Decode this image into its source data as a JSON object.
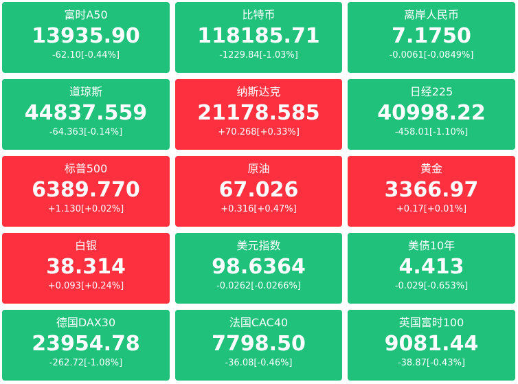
{
  "colors": {
    "down": "#1fc17b",
    "up": "#fd303f",
    "text": "#ffffff"
  },
  "quotes": [
    {
      "name": "富时A50",
      "price": "13935.90",
      "change": "-62.10[-0.44%]",
      "direction": "down"
    },
    {
      "name": "比特币",
      "price": "118185.71",
      "change": "-1229.84[-1.03%]",
      "direction": "down"
    },
    {
      "name": "离岸人民币",
      "price": "7.1750",
      "change": "-0.0061[-0.0849%]",
      "direction": "down"
    },
    {
      "name": "道琼斯",
      "price": "44837.559",
      "change": "-64.363[-0.14%]",
      "direction": "down"
    },
    {
      "name": "纳斯达克",
      "price": "21178.585",
      "change": "+70.268[+0.33%]",
      "direction": "up"
    },
    {
      "name": "日经225",
      "price": "40998.22",
      "change": "-458.01[-1.10%]",
      "direction": "down"
    },
    {
      "name": "标普500",
      "price": "6389.770",
      "change": "+1.130[+0.02%]",
      "direction": "up"
    },
    {
      "name": "原油",
      "price": "67.026",
      "change": "+0.316[+0.47%]",
      "direction": "up"
    },
    {
      "name": "黄金",
      "price": "3366.97",
      "change": "+0.17[+0.01%]",
      "direction": "up"
    },
    {
      "name": "白银",
      "price": "38.314",
      "change": "+0.093[+0.24%]",
      "direction": "up"
    },
    {
      "name": "美元指数",
      "price": "98.6364",
      "change": "-0.0262[-0.0266%]",
      "direction": "down"
    },
    {
      "name": "美债10年",
      "price": "4.413",
      "change": "-0.029[-0.653%]",
      "direction": "down"
    },
    {
      "name": "德国DAX30",
      "price": "23954.78",
      "change": "-262.72[-1.08%]",
      "direction": "down"
    },
    {
      "name": "法国CAC40",
      "price": "7798.50",
      "change": "-36.08[-0.46%]",
      "direction": "down"
    },
    {
      "name": "英国富时100",
      "price": "9081.44",
      "change": "-38.87[-0.43%]",
      "direction": "down"
    }
  ]
}
